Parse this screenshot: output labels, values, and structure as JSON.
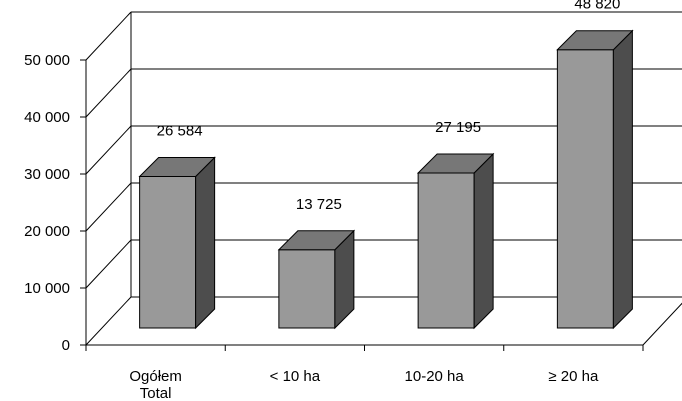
{
  "chart_data": {
    "type": "bar",
    "title": "",
    "xlabel": "",
    "ylabel": "",
    "categories": [
      "Ogółem",
      "< 10 ha",
      "10-20 ha",
      "≥ 20 ha"
    ],
    "category_sublabels": [
      "Total",
      "",
      "",
      ""
    ],
    "values": [
      26584,
      13725,
      27195,
      48820
    ],
    "value_labels": [
      "26 584",
      "13 725",
      "27 195",
      "48 820"
    ],
    "ylim": [
      0,
      50000
    ],
    "yticks": [
      0,
      10000,
      20000,
      30000,
      40000,
      50000
    ],
    "ytick_labels": [
      "0",
      "10 000",
      "20 000",
      "30 000",
      "40 000",
      "50 000"
    ],
    "grid": true,
    "style": "3d-column",
    "colors": {
      "bar_front": "#999999",
      "bar_top": "#777777",
      "bar_side": "#4d4d4d",
      "grid": "#000000",
      "axis": "#000000"
    }
  }
}
